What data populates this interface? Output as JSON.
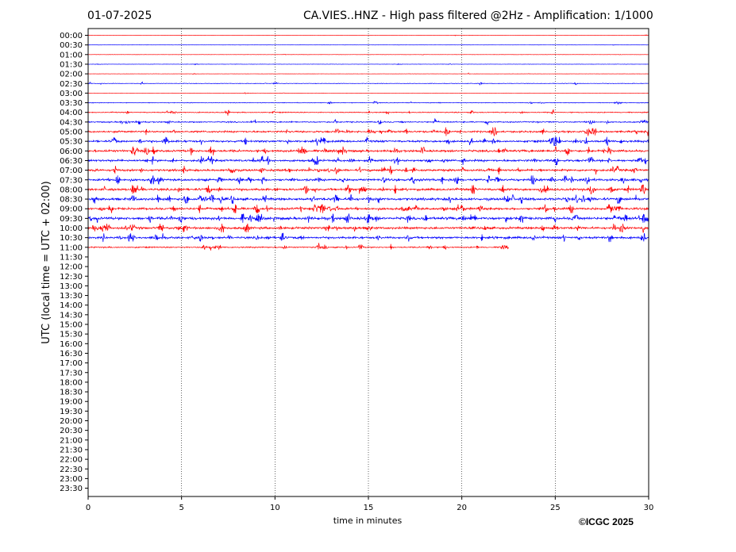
{
  "chart_data": {
    "type": "line",
    "title_left": "01-07-2025",
    "title": "CA.VIES..HNZ - High pass filtered @2Hz - Amplification: 1/1000",
    "xlabel": "time in minutes",
    "ylabel": "UTC (local time = UTC + 02:00)",
    "xlim": [
      0,
      30
    ],
    "x_ticks": [
      "0",
      "5",
      "10",
      "15",
      "20",
      "25",
      "30"
    ],
    "grid": "vertical dotted lines every 5 minutes",
    "row_labels": [
      "00:00",
      "00:30",
      "01:00",
      "01:30",
      "02:00",
      "02:30",
      "03:00",
      "03:30",
      "04:00",
      "04:30",
      "05:00",
      "05:30",
      "06:00",
      "06:30",
      "07:00",
      "07:30",
      "08:00",
      "08:30",
      "09:00",
      "09:30",
      "10:00",
      "10:30",
      "11:00",
      "11:30",
      "12:00",
      "12:30",
      "13:00",
      "13:30",
      "14:00",
      "14:30",
      "15:00",
      "15:30",
      "16:00",
      "16:30",
      "17:00",
      "17:30",
      "18:00",
      "18:30",
      "19:00",
      "19:30",
      "20:00",
      "20:30",
      "21:00",
      "21:30",
      "22:00",
      "22:30",
      "23:00",
      "23:30"
    ],
    "series_colors": [
      "#ff0000",
      "#0000ff"
    ],
    "last_trace_end_minutes": 22.5,
    "trace_activity": [
      0.3,
      0.4,
      0.5,
      0.7,
      0.5,
      1.2,
      0.4,
      1.4,
      2.0,
      2.6,
      3.8,
      4.2,
      4.6,
      4.5,
      4.4,
      4.8,
      4.6,
      5.2,
      4.8,
      5.6,
      4.8,
      4.5,
      2.6
    ]
  },
  "copyright": "©ICGC 2025"
}
